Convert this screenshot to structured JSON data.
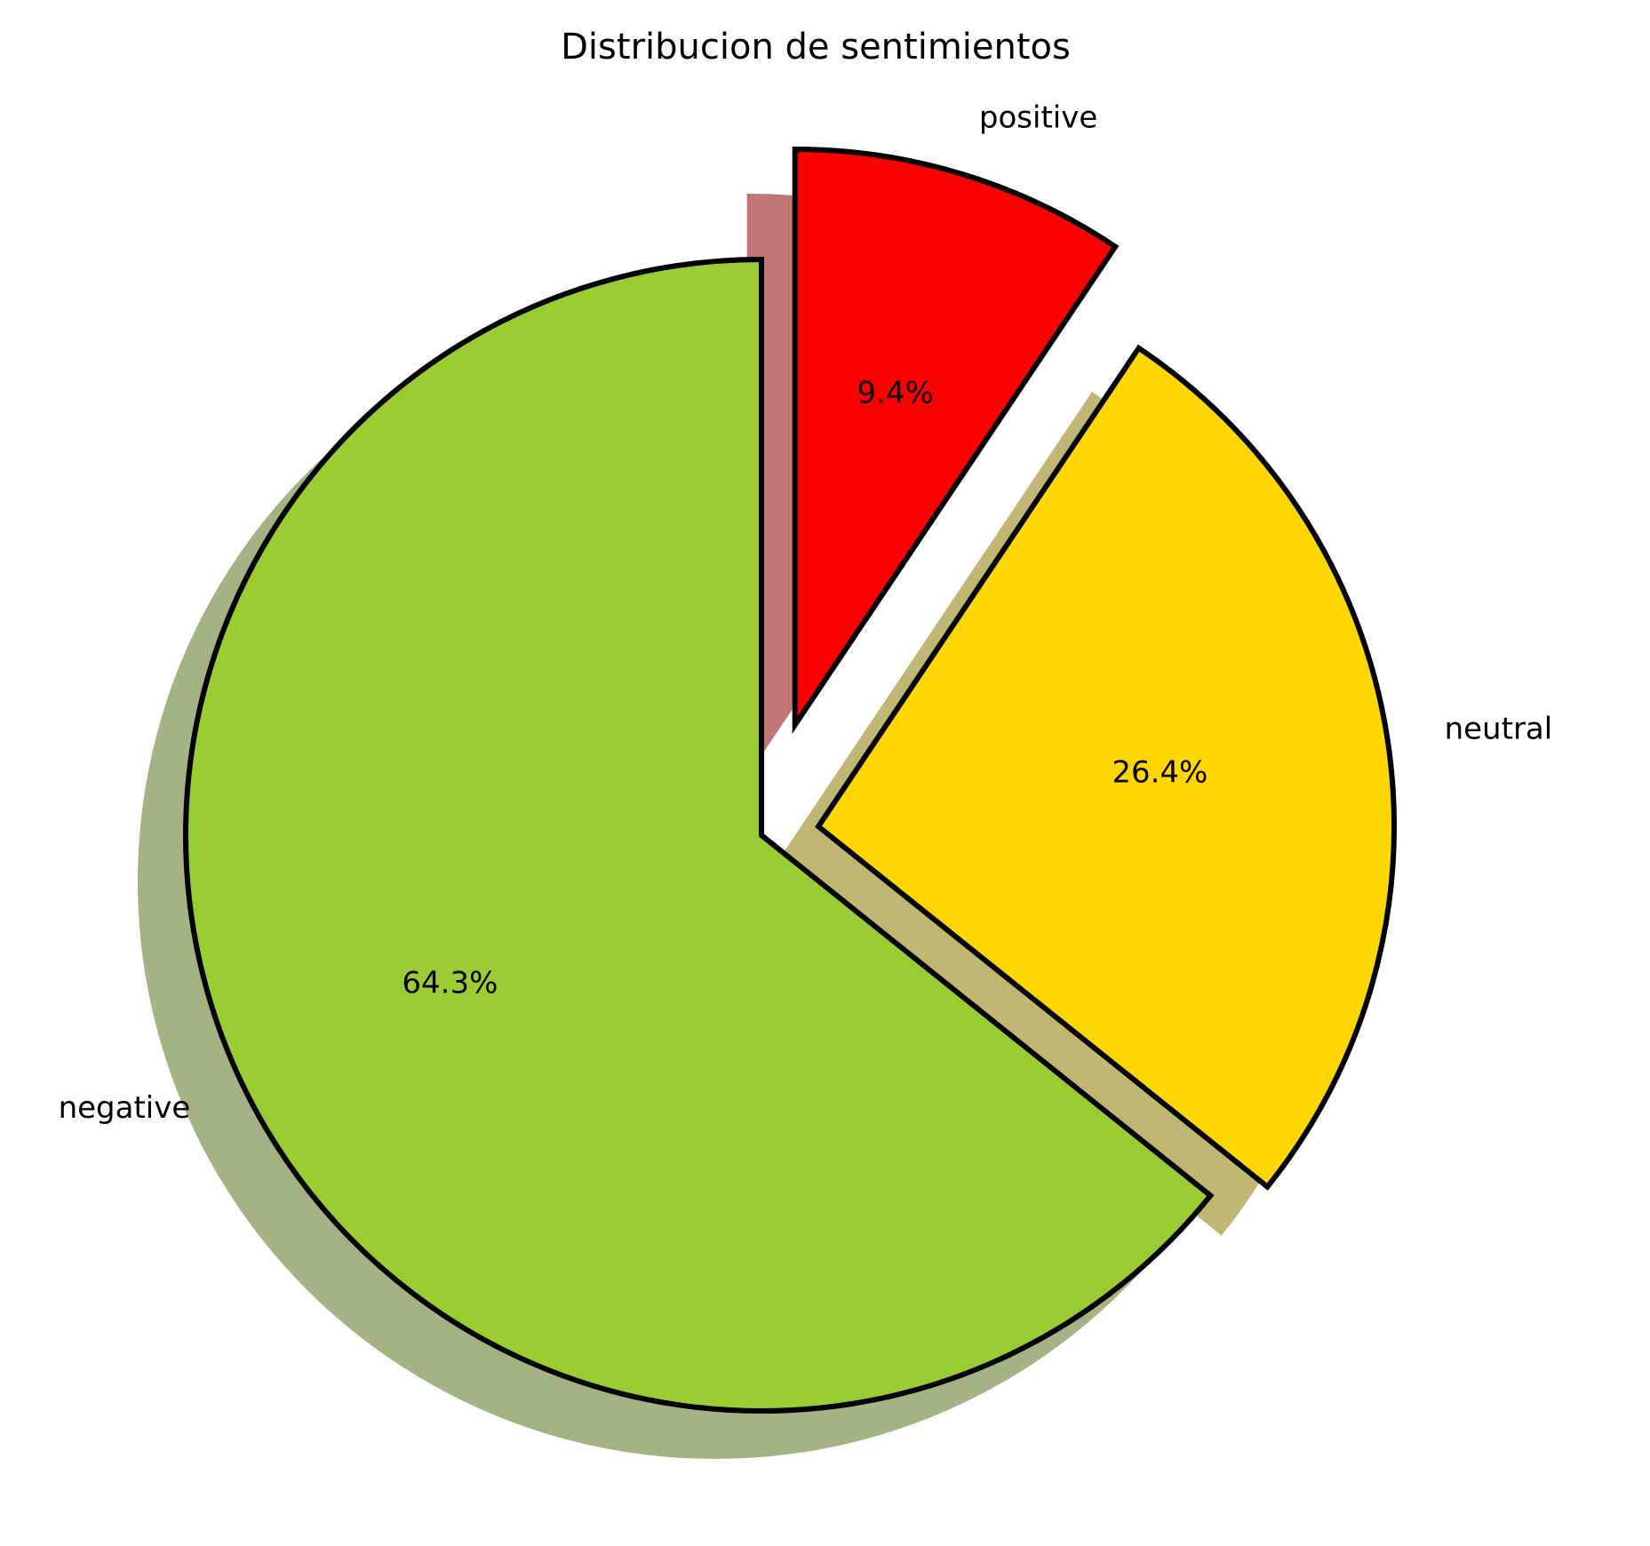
{
  "chart_data": {
    "type": "pie",
    "title": "Distribucion de sentimientos",
    "start_angle_deg": 90,
    "direction": "counterclockwise",
    "shadow": true,
    "slices": [
      {
        "label": "negative",
        "value": 64.3,
        "pct_text": "64.3%",
        "color": "#9acd32",
        "explode": 0
      },
      {
        "label": "neutral",
        "value": 26.4,
        "pct_text": "26.4%",
        "color": "#ffd700",
        "explode": 0.1
      },
      {
        "label": "positive",
        "value": 9.4,
        "pct_text": "9.4%",
        "color": "#ff0000",
        "explode": 0.2
      }
    ]
  }
}
